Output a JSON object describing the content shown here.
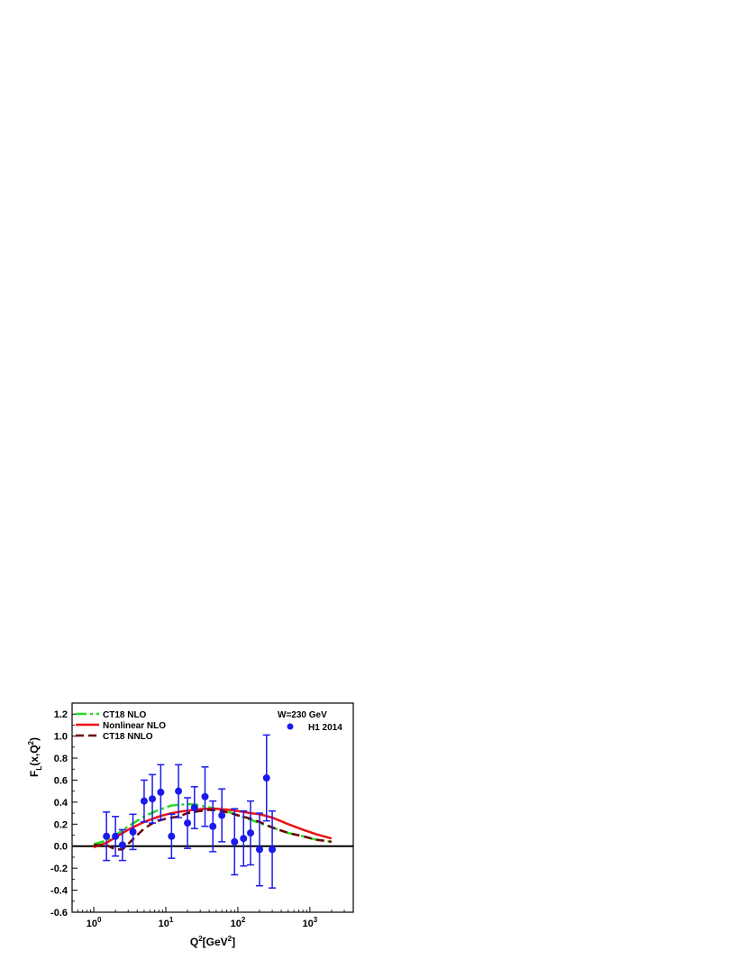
{
  "chart_data": {
    "type": "line",
    "xlabel": {
      "main": "Q",
      "sup": "2",
      "rest": "[GeV",
      "sup2": "2",
      "end": "]"
    },
    "ylabel": {
      "main": "F",
      "sub": "L",
      "rest": "(x,Q",
      "sup": "2",
      "end": ")"
    },
    "x_scale": "log",
    "xlim": [
      0.5,
      4000
    ],
    "ylim": [
      -0.6,
      1.3
    ],
    "x_ticks": [
      {
        "base": "10",
        "exp": "0"
      },
      {
        "base": "10",
        "exp": "1"
      },
      {
        "base": "10",
        "exp": "2"
      },
      {
        "base": "10",
        "exp": "3"
      }
    ],
    "y_ticks": [
      "-0.6",
      "-0.4",
      "-0.2",
      "0.0",
      "0.2",
      "0.4",
      "0.6",
      "0.8",
      "1.0",
      "1.2"
    ],
    "annotation": "W=230 GeV",
    "grid": false,
    "legend_position": "top-left",
    "series": [
      {
        "name": "CT18 NLO",
        "style": "dash-dot",
        "color": "#22dd22",
        "x": [
          1.0,
          1.5,
          2.0,
          3.0,
          5.0,
          8.0,
          12.0,
          18.0,
          25.0,
          35.0,
          50.0,
          75.0,
          100.0,
          150.0,
          200.0,
          300.0,
          500.0,
          800.0,
          1200.0,
          2000.0
        ],
        "y": [
          0.02,
          0.05,
          0.1,
          0.18,
          0.27,
          0.33,
          0.37,
          0.38,
          0.38,
          0.36,
          0.34,
          0.31,
          0.28,
          0.24,
          0.21,
          0.17,
          0.12,
          0.09,
          0.06,
          0.04
        ]
      },
      {
        "name": "Nonlinear NLO",
        "style": "solid",
        "color": "#ee1111",
        "x": [
          1.0,
          1.5,
          2.0,
          3.0,
          5.0,
          8.0,
          12.0,
          18.0,
          25.0,
          35.0,
          50.0,
          75.0,
          100.0,
          150.0,
          200.0,
          300.0,
          500.0,
          800.0,
          1200.0,
          2000.0
        ],
        "y": [
          -0.01,
          0.03,
          0.08,
          0.15,
          0.22,
          0.27,
          0.3,
          0.32,
          0.33,
          0.34,
          0.34,
          0.33,
          0.32,
          0.3,
          0.29,
          0.26,
          0.2,
          0.15,
          0.11,
          0.07
        ]
      },
      {
        "name": "CT18 NNLO",
        "style": "dash",
        "color": "#6a0000",
        "x": [
          1.0,
          1.5,
          2.0,
          2.5,
          3.0,
          4.0,
          5.0,
          7.0,
          10.0,
          15.0,
          20.0,
          30.0,
          40.0,
          60.0,
          80.0,
          100.0,
          150.0,
          200.0,
          300.0,
          500.0,
          800.0,
          1200.0,
          2000.0
        ],
        "y": [
          0.01,
          0.01,
          -0.03,
          -0.03,
          0.02,
          0.1,
          0.16,
          0.22,
          0.25,
          0.27,
          0.3,
          0.32,
          0.33,
          0.32,
          0.3,
          0.28,
          0.25,
          0.22,
          0.17,
          0.12,
          0.09,
          0.06,
          0.04
        ]
      }
    ],
    "points": {
      "name": "H1 2014",
      "color": "#1a1aee",
      "data": [
        {
          "x": 1.5,
          "y": 0.09,
          "err": 0.22
        },
        {
          "x": 2.0,
          "y": 0.09,
          "err": 0.18
        },
        {
          "x": 2.5,
          "y": 0.01,
          "err": 0.14
        },
        {
          "x": 3.5,
          "y": 0.13,
          "err": 0.16
        },
        {
          "x": 5.0,
          "y": 0.41,
          "err": 0.19
        },
        {
          "x": 6.5,
          "y": 0.43,
          "err": 0.22
        },
        {
          "x": 8.5,
          "y": 0.49,
          "err": 0.25
        },
        {
          "x": 12.0,
          "y": 0.09,
          "err": 0.2
        },
        {
          "x": 15.0,
          "y": 0.5,
          "err": 0.24
        },
        {
          "x": 20.0,
          "y": 0.21,
          "err": 0.23
        },
        {
          "x": 25.0,
          "y": 0.35,
          "err": 0.19
        },
        {
          "x": 35.0,
          "y": 0.45,
          "err": 0.27
        },
        {
          "x": 45.0,
          "y": 0.18,
          "err": 0.23
        },
        {
          "x": 60.0,
          "y": 0.28,
          "err": 0.24
        },
        {
          "x": 90.0,
          "y": 0.04,
          "err": 0.3
        },
        {
          "x": 120.0,
          "y": 0.07,
          "err": 0.25
        },
        {
          "x": 150.0,
          "y": 0.12,
          "err": 0.29
        },
        {
          "x": 200.0,
          "y": -0.03,
          "err": 0.33
        },
        {
          "x": 250.0,
          "y": 0.62,
          "err": 0.39
        },
        {
          "x": 300.0,
          "y": -0.03,
          "err": 0.35
        }
      ]
    }
  }
}
